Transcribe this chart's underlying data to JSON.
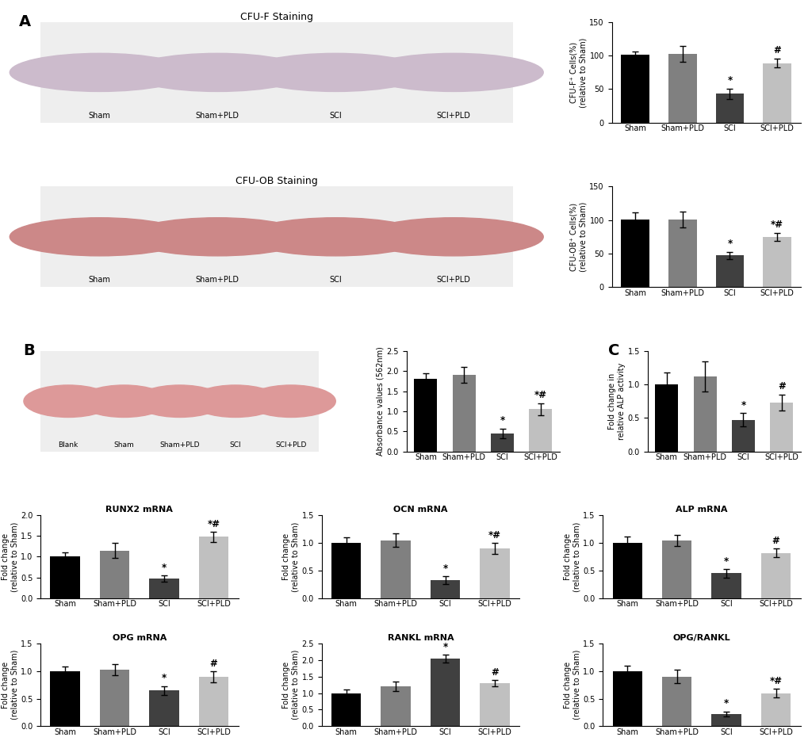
{
  "categories": [
    "Sham",
    "Sham+PLD",
    "SCI",
    "SCI+PLD"
  ],
  "bar_colors": [
    "#000000",
    "#808080",
    "#404040",
    "#c0c0c0"
  ],
  "cfuf_values": [
    101,
    103,
    43,
    89
  ],
  "cfuf_errors": [
    5,
    12,
    8,
    7
  ],
  "cfuf_ylabel": "CFU-F⁺ Cells(%)\n(relative to Sham)",
  "cfuf_ylim": [
    0,
    150
  ],
  "cfuf_yticks": [
    0,
    50,
    100,
    150
  ],
  "cfuf_annotations": [
    "",
    "",
    "*",
    "#"
  ],
  "cfuob_values": [
    101,
    101,
    47,
    75
  ],
  "cfuob_errors": [
    10,
    12,
    5,
    6
  ],
  "cfuob_ylabel": "CFU-OB⁺ Cells(%)\n(relative to Sham)",
  "cfuob_ylim": [
    0,
    150
  ],
  "cfuob_yticks": [
    0,
    50,
    100,
    150
  ],
  "cfuob_annotations": [
    "",
    "",
    "*",
    "*#"
  ],
  "abs_values": [
    1.8,
    1.9,
    0.45,
    1.05
  ],
  "abs_errors": [
    0.15,
    0.2,
    0.12,
    0.15
  ],
  "abs_ylabel": "Absorbance values (562nm)",
  "abs_ylim": [
    0,
    2.5
  ],
  "abs_yticks": [
    0.0,
    0.5,
    1.0,
    1.5,
    2.0,
    2.5
  ],
  "abs_annotations": [
    "",
    "",
    "*",
    "*#"
  ],
  "alp_values": [
    1.0,
    1.12,
    0.47,
    0.73
  ],
  "alp_errors": [
    0.18,
    0.22,
    0.1,
    0.12
  ],
  "alp_ylabel": "Fold change in\nrelative ALP activity",
  "alp_ylim": [
    0,
    1.5
  ],
  "alp_yticks": [
    0.0,
    0.5,
    1.0,
    1.5
  ],
  "alp_annotations": [
    "",
    "",
    "*",
    "#"
  ],
  "runx2_values": [
    1.0,
    1.15,
    0.47,
    1.48
  ],
  "runx2_errors": [
    0.1,
    0.18,
    0.08,
    0.12
  ],
  "runx2_ylabel": "Fold change\n(relative to Sham)",
  "runx2_title": "RUNX2 mRNA",
  "runx2_ylim": [
    0,
    2.0
  ],
  "runx2_yticks": [
    0.0,
    0.5,
    1.0,
    1.5,
    2.0
  ],
  "runx2_annotations": [
    "",
    "",
    "*",
    "*#"
  ],
  "ocn_values": [
    1.0,
    1.05,
    0.33,
    0.9
  ],
  "ocn_errors": [
    0.1,
    0.12,
    0.07,
    0.1
  ],
  "ocn_ylabel": "Fold change\n(relative to Sham)",
  "ocn_title": "OCN mRNA",
  "ocn_ylim": [
    0,
    1.5
  ],
  "ocn_yticks": [
    0.0,
    0.5,
    1.0,
    1.5
  ],
  "ocn_annotations": [
    "",
    "",
    "*",
    "*#"
  ],
  "alpm_values": [
    1.0,
    1.05,
    0.45,
    0.82
  ],
  "alpm_errors": [
    0.12,
    0.1,
    0.08,
    0.08
  ],
  "alpm_ylabel": "Fold change\n(relative to Sham)",
  "alpm_title": "ALP mRNA",
  "alpm_ylim": [
    0,
    1.5
  ],
  "alpm_yticks": [
    0.0,
    0.5,
    1.0,
    1.5
  ],
  "alpm_annotations": [
    "",
    "",
    "*",
    "#"
  ],
  "opg_values": [
    1.0,
    1.02,
    0.65,
    0.9
  ],
  "opg_errors": [
    0.08,
    0.1,
    0.08,
    0.1
  ],
  "opg_ylabel": "Fold change\n(relative to Sham)",
  "opg_title": "OPG mRNA",
  "opg_ylim": [
    0,
    1.5
  ],
  "opg_yticks": [
    0.0,
    0.5,
    1.0,
    1.5
  ],
  "opg_annotations": [
    "",
    "",
    "*",
    "#"
  ],
  "rankl_values": [
    1.0,
    1.2,
    2.05,
    1.3
  ],
  "rankl_errors": [
    0.1,
    0.15,
    0.12,
    0.1
  ],
  "rankl_ylabel": "Fold change\n(relative to Sham)",
  "rankl_title": "RANKL mRNA",
  "rankl_ylim": [
    0,
    2.5
  ],
  "rankl_yticks": [
    0.0,
    0.5,
    1.0,
    1.5,
    2.0,
    2.5
  ],
  "rankl_annotations": [
    "",
    "",
    "*",
    "#"
  ],
  "opr_values": [
    1.0,
    0.9,
    0.22,
    0.6
  ],
  "opr_errors": [
    0.1,
    0.12,
    0.05,
    0.08
  ],
  "opr_ylabel": "Fold change\n(relative to Sham)",
  "opr_title": "OPG/RANKL",
  "opr_ylim": [
    0,
    1.5
  ],
  "opr_yticks": [
    0.0,
    0.5,
    1.0,
    1.5
  ],
  "opr_annotations": [
    "",
    "",
    "*",
    "*#"
  ],
  "cfu_f_title": "CFU-F Staining",
  "cfu_ob_title": "CFU-OB Staining"
}
